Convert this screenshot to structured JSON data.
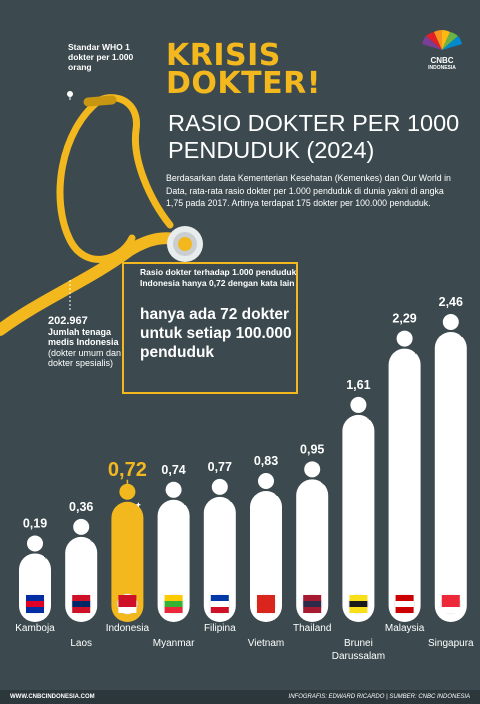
{
  "header": {
    "title": "KRISIS DOKTER!",
    "subtitle": "RASIO DOKTER PER 1000 PENDUDUK (2024)",
    "intro": "Berdasarkan data Kementerian Kesehatan (Kemenkes) dan Our World in Data,  rata-rata rasio dokter per 1.000 penduduk di dunia yakni di angka 1,75 pada 2017. Artinya terdapat 175 dokter per 100.000 penduduk."
  },
  "logo": {
    "name": "cnbc-peacock-icon",
    "text": "CNBC",
    "sub": "INDONESIA"
  },
  "who_note": "Standar WHO 1 dokter per 1.000 orang",
  "medis": {
    "number": "202.967",
    "label": "Jumlah tenaga medis Indonesia",
    "detail": "(dokter umum dan dokter spesialis)"
  },
  "callout": {
    "text": "Rasio dokter terhadap 1.000 penduduk Indonesia hanya 0,72 dengan kata lain",
    "highlight": "hanya ada 72 dokter untuk setiap 100.000 penduduk"
  },
  "colors": {
    "background": "#3c4a4f",
    "accent": "#f3b81d",
    "bar": "#ffffff",
    "text": "#ffffff"
  },
  "chart_data": {
    "type": "bar",
    "title": "RASIO DOKTER PER 1000 PENDUDUK (2024)",
    "categories": [
      "Kamboja",
      "Laos",
      "Indonesia",
      "Myanmar",
      "Filipina",
      "Vietnam",
      "Thailand",
      "Brunei Darussalam",
      "Malaysia",
      "Singapura"
    ],
    "values": [
      0.19,
      0.36,
      0.72,
      0.74,
      0.77,
      0.83,
      0.95,
      1.61,
      2.29,
      2.46
    ],
    "value_labels": [
      "0,19",
      "0,36",
      "0,72",
      "0,74",
      "0,77",
      "0,83",
      "0,95",
      "1,61",
      "2,29",
      "2,46"
    ],
    "highlight": "Indonesia",
    "flags": [
      "flag-cambodia-icon",
      "flag-laos-icon",
      "flag-indonesia-icon",
      "flag-myanmar-icon",
      "flag-philippines-icon",
      "flag-vietnam-icon",
      "flag-thailand-icon",
      "flag-brunei-icon",
      "flag-malaysia-icon",
      "flag-singapore-icon"
    ],
    "xlabel": "",
    "ylabel": "",
    "grid": false,
    "legend": "none"
  },
  "footer": {
    "left": "WWW.CNBCINDONESIA.COM",
    "right": "INFOGRAFIS: EDWARD RICARDO | SUMBER: CNBC INDONESIA"
  }
}
